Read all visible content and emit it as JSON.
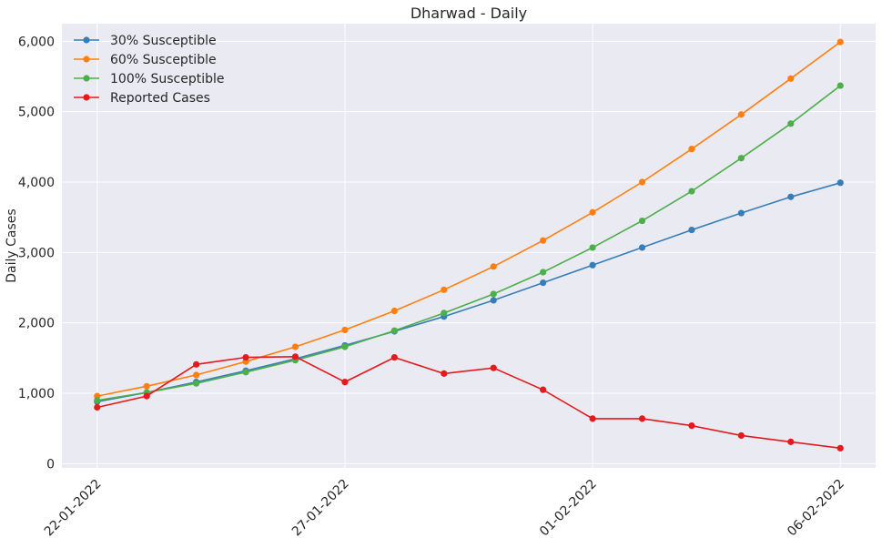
{
  "chart_data": {
    "type": "line",
    "title": "Dharwad - Daily",
    "xlabel": "",
    "ylabel": "Daily Cases",
    "x_dates": [
      "2022-01-22",
      "2022-01-23",
      "2022-01-24",
      "2022-01-25",
      "2022-01-26",
      "2022-01-27",
      "2022-01-28",
      "2022-01-29",
      "2022-01-30",
      "2022-01-31",
      "2022-02-01",
      "2022-02-02",
      "2022-02-03",
      "2022-02-04",
      "2022-02-05",
      "2022-02-06"
    ],
    "x_tick_dates": [
      "2022-01-22",
      "2022-01-27",
      "2022-02-01",
      "2022-02-06"
    ],
    "x_tick_labels": [
      "22-01-2022",
      "27-01-2022",
      "01-02-2022",
      "06-02-2022"
    ],
    "ylim": [
      -60,
      6250
    ],
    "y_ticks": [
      0,
      1000,
      2000,
      3000,
      4000,
      5000,
      6000
    ],
    "y_tick_labels": [
      "0",
      "1,000",
      "2,000",
      "3,000",
      "4,000",
      "5,000",
      "6,000"
    ],
    "grid": true,
    "legend_position": "top-left",
    "background": "#eaeaf2",
    "grid_color": "#ffffff",
    "series": [
      {
        "name": "30% Susceptible",
        "color": "#377eb8",
        "values": [
          880,
          1010,
          1160,
          1320,
          1490,
          1680,
          1880,
          2090,
          2320,
          2570,
          2820,
          3070,
          3320,
          3560,
          3790,
          3990
        ]
      },
      {
        "name": "60% Susceptible",
        "color": "#ff7f0e",
        "values": [
          960,
          1100,
          1260,
          1450,
          1660,
          1900,
          2170,
          2470,
          2800,
          3170,
          3570,
          4000,
          4470,
          4960,
          5470,
          5990
        ]
      },
      {
        "name": "100% Susceptible",
        "color": "#4daf4a",
        "values": [
          900,
          1010,
          1140,
          1300,
          1470,
          1660,
          1890,
          2140,
          2410,
          2720,
          3070,
          3450,
          3870,
          4340,
          4830,
          5370
        ]
      },
      {
        "name": "Reported Cases",
        "color": "#e41a1c",
        "values": [
          800,
          960,
          1410,
          1510,
          1520,
          1160,
          1510,
          1280,
          1360,
          1050,
          640,
          640,
          540,
          400,
          310,
          220
        ]
      }
    ]
  }
}
